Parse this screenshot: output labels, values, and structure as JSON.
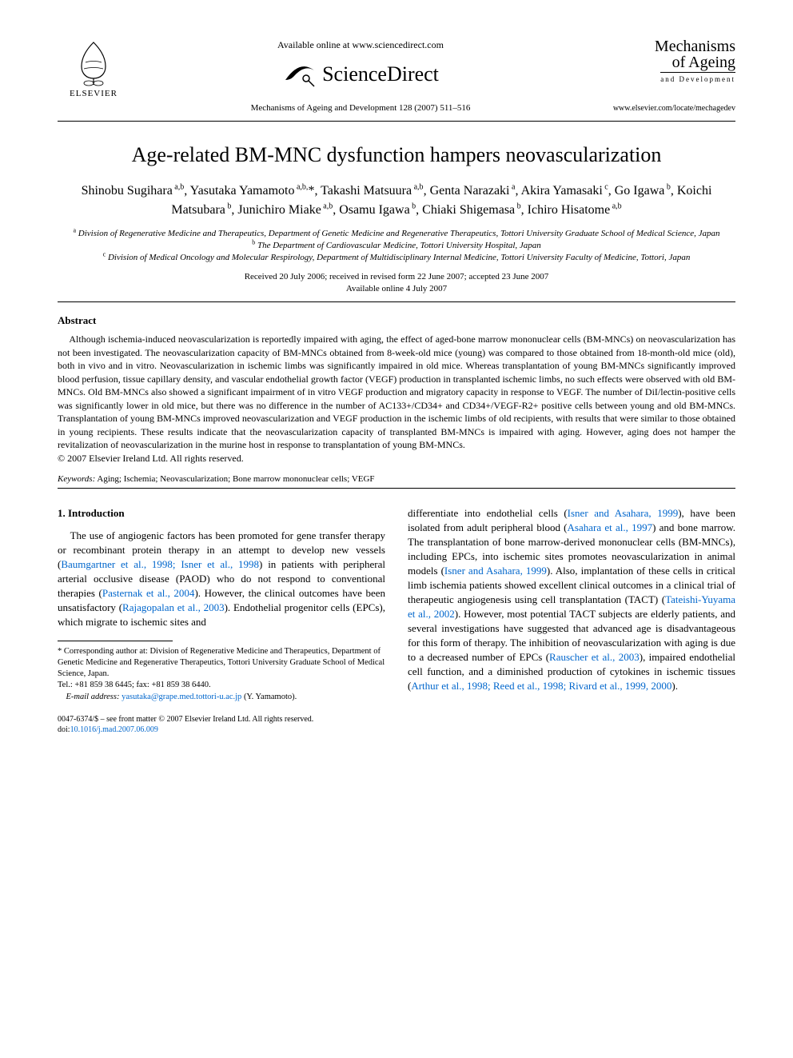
{
  "colors": {
    "text": "#000000",
    "background": "#ffffff",
    "link": "#0066cc",
    "rule": "#000000"
  },
  "typography": {
    "body_family": "Times New Roman",
    "title_size_pt": 20,
    "author_size_pt": 12,
    "body_size_pt": 10,
    "abstract_size_pt": 9
  },
  "header": {
    "publisher": "ELSEVIER",
    "available_online": "Available online at www.sciencedirect.com",
    "sciencedirect": "ScienceDirect",
    "citation": "Mechanisms of Ageing and Development 128 (2007) 511–516",
    "journal_line1": "Mechanisms",
    "journal_line2": "of Ageing",
    "journal_sub": "and Development",
    "journal_url": "www.elsevier.com/locate/mechagedev"
  },
  "title": "Age-related BM-MNC dysfunction hampers neovascularization",
  "authors_html": "Shinobu Sugihara<sup> a,b</sup>, Yasutaka Yamamoto<sup> a,b,</sup>*, Takashi Matsuura<sup> a,b</sup>, Genta Narazaki<sup> a</sup>, Akira Yamasaki<sup> c</sup>, Go Igawa<sup> b</sup>, Koichi Matsubara<sup> b</sup>, Junichiro Miake<sup> a,b</sup>, Osamu Igawa<sup> b</sup>, Chiaki Shigemasa<sup> b</sup>, Ichiro Hisatome<sup> a,b</sup>",
  "affiliations": {
    "a": "Division of Regenerative Medicine and Therapeutics, Department of Genetic Medicine and Regenerative Therapeutics, Tottori University Graduate School of Medical Science, Japan",
    "b": "The Department of Cardiovascular Medicine, Tottori University Hospital, Japan",
    "c": "Division of Medical Oncology and Molecular Respirology, Department of Multidisciplinary Internal Medicine, Tottori University Faculty of Medicine, Tottori, Japan"
  },
  "dates": {
    "received": "Received 20 July 2006; received in revised form 22 June 2007; accepted 23 June 2007",
    "online": "Available online 4 July 2007"
  },
  "abstract": {
    "heading": "Abstract",
    "body": "Although ischemia-induced neovascularization is reportedly impaired with aging, the effect of aged-bone marrow mononuclear cells (BM-MNCs) on neovascularization has not been investigated. The neovascularization capacity of BM-MNCs obtained from 8-week-old mice (young) was compared to those obtained from 18-month-old mice (old), both in vivo and in vitro. Neovascularization in ischemic limbs was significantly impaired in old mice. Whereas transplantation of young BM-MNCs significantly improved blood perfusion, tissue capillary density, and vascular endothelial growth factor (VEGF) production in transplanted ischemic limbs, no such effects were observed with old BM-MNCs. Old BM-MNCs also showed a significant impairment of in vitro VEGF production and migratory capacity in response to VEGF. The number of DiI/lectin-positive cells was significantly lower in old mice, but there was no difference in the number of AC133+/CD34+ and CD34+/VEGF-R2+ positive cells between young and old BM-MNCs. Transplantation of young BM-MNCs improved neovascularization and VEGF production in the ischemic limbs of old recipients, with results that were similar to those obtained in young recipients. These results indicate that the neovascularization capacity of transplanted BM-MNCs is impaired with aging. However, aging does not hamper the revitalization of neovascularization in the murine host in response to transplantation of young BM-MNCs.",
    "copyright": "© 2007 Elsevier Ireland Ltd. All rights reserved."
  },
  "keywords": {
    "label": "Keywords:",
    "list": "Aging; Ischemia; Neovascularization; Bone marrow mononuclear cells; VEGF"
  },
  "section1": {
    "heading": "1. Introduction",
    "left_pre": "The use of angiogenic factors has been promoted for gene transfer therapy or recombinant protein therapy in an attempt to develop new vessels (",
    "left_link1": "Baumgartner et al., 1998; Isner et al., 1998",
    "left_mid1": ") in patients with peripheral arterial occlusive disease (PAOD) who do not respond to conventional therapies (",
    "left_link2": "Pasternak et al., 2004",
    "left_mid2": "). However, the clinical outcomes have been unsatisfactory (",
    "left_link3": "Rajagopalan et al., 2003",
    "left_mid3": "). Endothelial progenitor cells (EPCs), which migrate to ischemic sites and",
    "right_pre": "differentiate into endothelial cells (",
    "right_link1": "Isner and Asahara, 1999",
    "right_mid1": "), have been isolated from adult peripheral blood (",
    "right_link2": "Asahara et al., 1997",
    "right_mid2": ") and bone marrow. The transplantation of bone marrow-derived mononuclear cells (BM-MNCs), including EPCs, into ischemic sites promotes neovascularization in animal models (",
    "right_link3": "Isner and Asahara, 1999",
    "right_mid3": "). Also, implantation of these cells in critical limb ischemia patients showed excellent clinical outcomes in a clinical trial of therapeutic angiogenesis using cell transplantation (TACT) (",
    "right_link4": "Tateishi-Yuyama et al., 2002",
    "right_mid4": "). However, most potential TACT subjects are elderly patients, and several investigations have suggested that advanced age is disadvantageous for this form of therapy. The inhibition of neovascularization with aging is due to a decreased number of EPCs (",
    "right_link5": "Rauscher et al., 2003",
    "right_mid5": "), impaired endothelial cell function, and a diminished production of cytokines in ischemic tissues (",
    "right_link6": "Arthur et al., 1998; Reed et al., 1998; Rivard et al., 1999, 2000",
    "right_end": ")."
  },
  "footnote": {
    "corr": "* Corresponding author at: Division of Regenerative Medicine and Therapeutics, Department of Genetic Medicine and Regenerative Therapeutics, Tottori University Graduate School of Medical Science, Japan.",
    "tel": "Tel.: +81 859 38 6445; fax: +81 859 38 6440.",
    "email_label": "E-mail address:",
    "email": "yasutaka@grape.med.tottori-u.ac.jp",
    "email_suffix": " (Y. Yamamoto)."
  },
  "footer": {
    "issn": "0047-6374/$ – see front matter © 2007 Elsevier Ireland Ltd. All rights reserved.",
    "doi_label": "doi:",
    "doi": "10.1016/j.mad.2007.06.009"
  }
}
